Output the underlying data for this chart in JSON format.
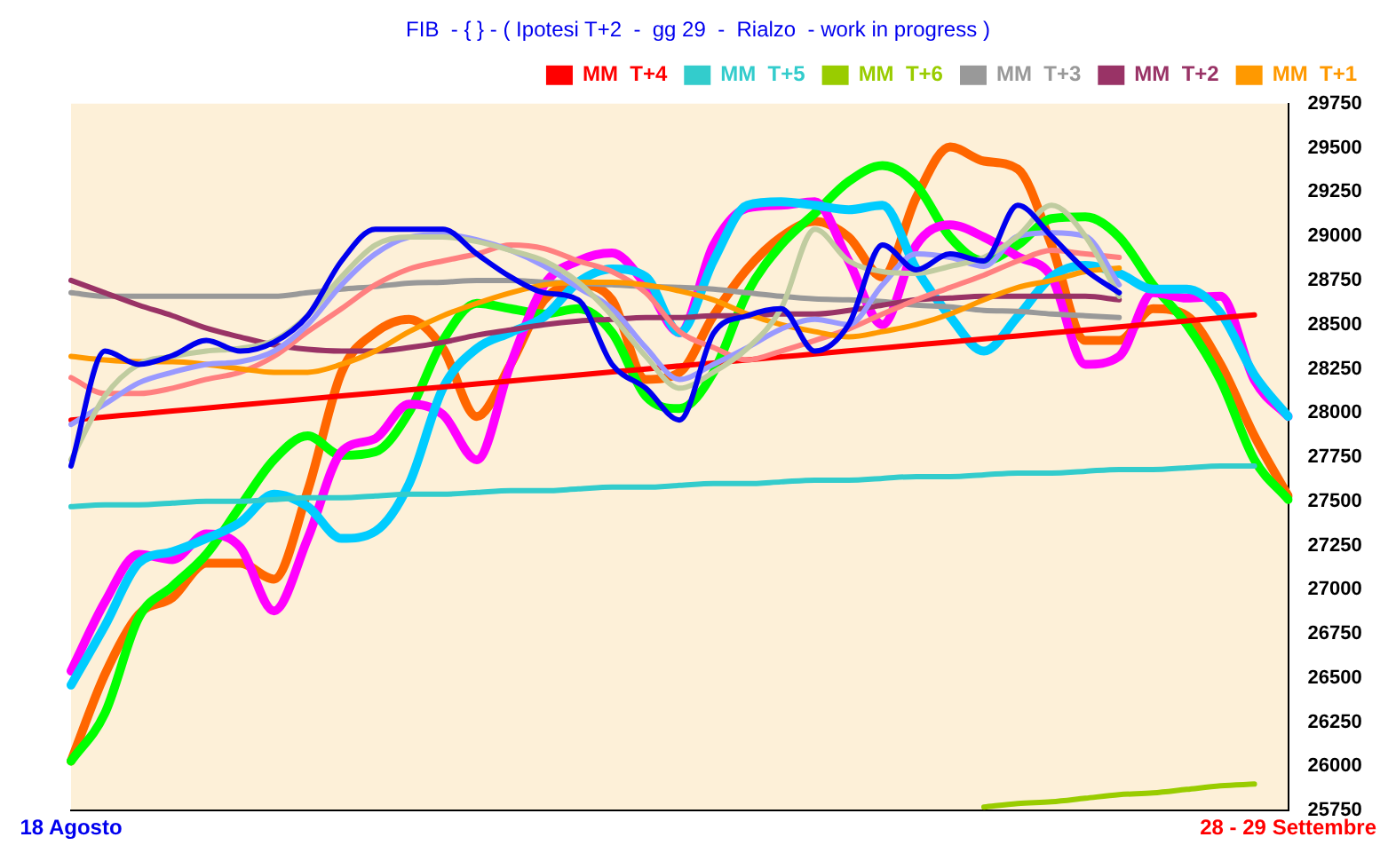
{
  "chart_data": {
    "type": "line",
    "title": "FIB  - { } - ( Ipotesi T+2  -  gg 29  -  Rialzo  - work in progress )",
    "categories": [
      "18 Agosto",
      null,
      null,
      null,
      null,
      null,
      null,
      null,
      null,
      null,
      null,
      null,
      null,
      null,
      null,
      null,
      null,
      null,
      null,
      null,
      null,
      null,
      null,
      null,
      null,
      null,
      null,
      null,
      null,
      null,
      null,
      null,
      null,
      null,
      null,
      null,
      "28 - 29 Settembre"
    ],
    "ylim": [
      25750,
      29750
    ],
    "yticks": [
      25750,
      26000,
      26250,
      26500,
      26750,
      27000,
      27250,
      27500,
      27750,
      28000,
      28250,
      28500,
      28750,
      29000,
      29250,
      29500,
      29750
    ],
    "grid": false,
    "legend": "top right",
    "marker": "none",
    "line_style": "solid",
    "series": [
      {
        "color": "#ff6600",
        "values": [
          26030,
          26520,
          26860,
          26955,
          27150,
          27150,
          27060,
          27560,
          28230,
          28455,
          28530,
          28365,
          27980,
          28275,
          28640,
          28725,
          28640,
          28190,
          28230,
          28550,
          28815,
          28995,
          29085,
          28995,
          28770,
          29220,
          29505,
          29425,
          29380,
          28950,
          28410,
          28410,
          28590,
          28550,
          28275,
          27870,
          27530
        ]
      },
      {
        "color": "#00ff00",
        "values": [
          26030,
          26300,
          26840,
          27020,
          27200,
          27470,
          27735,
          27870,
          27760,
          27780,
          28005,
          28410,
          28620,
          28590,
          28560,
          28590,
          28455,
          28095,
          28025,
          28230,
          28680,
          28950,
          29130,
          29310,
          29400,
          29290,
          28995,
          28860,
          28950,
          29100,
          29110,
          28995,
          28725,
          28500,
          28185,
          27735,
          27510
        ]
      },
      {
        "color": "#ff00ff",
        "values": [
          26540,
          26930,
          27200,
          27170,
          27315,
          27240,
          26880,
          27290,
          27780,
          27855,
          28050,
          27990,
          27735,
          28275,
          28725,
          28860,
          28905,
          28725,
          28455,
          28950,
          29160,
          29175,
          29195,
          28860,
          28500,
          28950,
          29065,
          28995,
          28885,
          28770,
          28275,
          28320,
          28680,
          28650,
          28660,
          28185,
          27980
        ]
      },
      {
        "color": "#00ccff",
        "values": [
          26460,
          26795,
          27150,
          27215,
          27290,
          27380,
          27540,
          27470,
          27290,
          27330,
          27600,
          28140,
          28365,
          28455,
          28545,
          28740,
          28815,
          28770,
          28455,
          28860,
          29175,
          29195,
          29175,
          29150,
          29175,
          28815,
          28545,
          28350,
          28545,
          28770,
          28835,
          28790,
          28700,
          28700,
          28565,
          28215,
          27980
        ]
      },
      {
        "name": "MM  T+4",
        "color": "#ff0000",
        "values": [
          27960,
          27977,
          27994,
          28011,
          28028,
          28045,
          28062,
          28079,
          28096,
          28113,
          28130,
          28147,
          28164,
          28181,
          28198,
          28215,
          28232,
          28249,
          28266,
          28283,
          28300,
          28317,
          28334,
          28351,
          28368,
          28385,
          28402,
          28419,
          28436,
          28453,
          28470,
          28487,
          28504,
          28521,
          28538,
          28555,
          null
        ]
      },
      {
        "name": "MM  T+5",
        "color": "#33cccc",
        "values": [
          27470,
          27480,
          27480,
          27490,
          27500,
          27500,
          27510,
          27520,
          27520,
          27530,
          27540,
          27540,
          27550,
          27560,
          27560,
          27570,
          27580,
          27580,
          27590,
          27600,
          27600,
          27610,
          27620,
          27620,
          27630,
          27640,
          27640,
          27650,
          27660,
          27660,
          27670,
          27680,
          27680,
          27690,
          27700,
          27700,
          null
        ]
      },
      {
        "name": "MM  T+6",
        "color": "#99cc00",
        "values": [
          null,
          null,
          null,
          null,
          null,
          null,
          null,
          null,
          null,
          null,
          null,
          null,
          null,
          null,
          null,
          null,
          null,
          null,
          null,
          null,
          null,
          null,
          null,
          null,
          null,
          null,
          null,
          25770,
          25790,
          25800,
          25820,
          25840,
          25850,
          25870,
          25890,
          25900,
          null
        ]
      },
      {
        "name": "MM  T+3",
        "color": "#999999",
        "values": [
          28680,
          28660,
          28660,
          28660,
          28660,
          28660,
          28660,
          28680,
          28700,
          28715,
          28735,
          28740,
          28750,
          28750,
          28740,
          28735,
          28725,
          28715,
          28710,
          28700,
          28680,
          28660,
          28645,
          28640,
          28630,
          28610,
          28600,
          28580,
          28575,
          28560,
          28550,
          28540,
          null,
          null,
          null,
          null,
          null
        ]
      },
      {
        "name": "MM  T+2",
        "color": "#993366",
        "values": [
          28750,
          28680,
          28610,
          28550,
          28480,
          28430,
          28385,
          28360,
          28350,
          28350,
          28370,
          28400,
          28440,
          28470,
          28500,
          28520,
          28530,
          28540,
          28540,
          28550,
          28550,
          28560,
          28560,
          28580,
          28610,
          28640,
          28650,
          28660,
          28660,
          28660,
          28660,
          28640,
          null,
          null,
          null,
          null,
          null
        ]
      },
      {
        "color": "#ff8080",
        "values": [
          28200,
          28110,
          28110,
          28140,
          28190,
          28230,
          28320,
          28460,
          28590,
          28725,
          28815,
          28860,
          28900,
          28950,
          28930,
          28860,
          28800,
          28680,
          28460,
          28370,
          28300,
          28350,
          28410,
          28475,
          28560,
          28640,
          28710,
          28780,
          28860,
          28920,
          28900,
          28880,
          null,
          null,
          null,
          null,
          null
        ]
      },
      {
        "name": "MM  T+1",
        "color": "#ff9900",
        "values": [
          28320,
          28300,
          28290,
          28290,
          28275,
          28250,
          28230,
          28230,
          28275,
          28350,
          28460,
          28550,
          28620,
          28680,
          28725,
          28740,
          28740,
          28725,
          28690,
          28640,
          28560,
          28500,
          28460,
          28430,
          28460,
          28500,
          28560,
          28640,
          28710,
          28750,
          28800,
          28820,
          null,
          null,
          null,
          null,
          null
        ]
      },
      {
        "color": "#9999ff",
        "values": [
          27935,
          28050,
          28170,
          28230,
          28275,
          28290,
          28350,
          28500,
          28725,
          28900,
          28995,
          29010,
          28980,
          28920,
          28830,
          28710,
          28590,
          28370,
          28190,
          28275,
          28370,
          28475,
          28530,
          28500,
          28725,
          28900,
          28880,
          28830,
          29000,
          29020,
          29000,
          28725,
          null,
          null,
          null,
          null,
          null
        ]
      },
      {
        "color": "#c0cca0",
        "values": [
          27735,
          28095,
          28275,
          28320,
          28350,
          28365,
          28410,
          28550,
          28770,
          28950,
          28995,
          28995,
          28970,
          28920,
          28860,
          28740,
          28550,
          28320,
          28140,
          28230,
          28365,
          28590,
          29040,
          28860,
          28800,
          28790,
          28830,
          28880,
          29000,
          29175,
          29000,
          28660,
          null,
          null,
          null,
          null,
          null
        ]
      },
      {
        "color": "#0000ee",
        "values": [
          27700,
          28350,
          28275,
          28325,
          28410,
          28350,
          28400,
          28550,
          28860,
          29040,
          29040,
          29040,
          28900,
          28770,
          28680,
          28640,
          28275,
          28140,
          27960,
          28450,
          28550,
          28590,
          28350,
          28500,
          28950,
          28810,
          28900,
          28860,
          29175,
          29000,
          28810,
          28680,
          null,
          null,
          null,
          null,
          null
        ]
      }
    ]
  }
}
